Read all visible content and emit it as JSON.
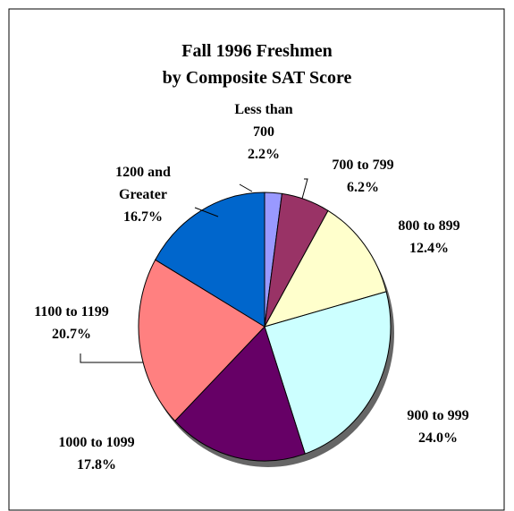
{
  "chart_data": {
    "type": "pie",
    "title": [
      "Fall 1996 Freshmen",
      "by Composite SAT Score"
    ],
    "categories": [
      "Less than 700",
      "700 to 799",
      "800 to 899",
      "900 to 999",
      "1000 to 1099",
      "1100 to 1199",
      "1200 and Greater"
    ],
    "values": [
      2.2,
      6.2,
      12.4,
      24.0,
      17.8,
      20.7,
      16.7
    ],
    "value_labels": [
      "2.2%",
      "6.2%",
      "12.4%",
      "24.0%",
      "17.8%",
      "20.7%",
      "16.7%"
    ],
    "colors": [
      "#9999ff",
      "#993366",
      "#ffffcc",
      "#ccffff",
      "#660066",
      "#ff8080",
      "#0066cc"
    ]
  }
}
